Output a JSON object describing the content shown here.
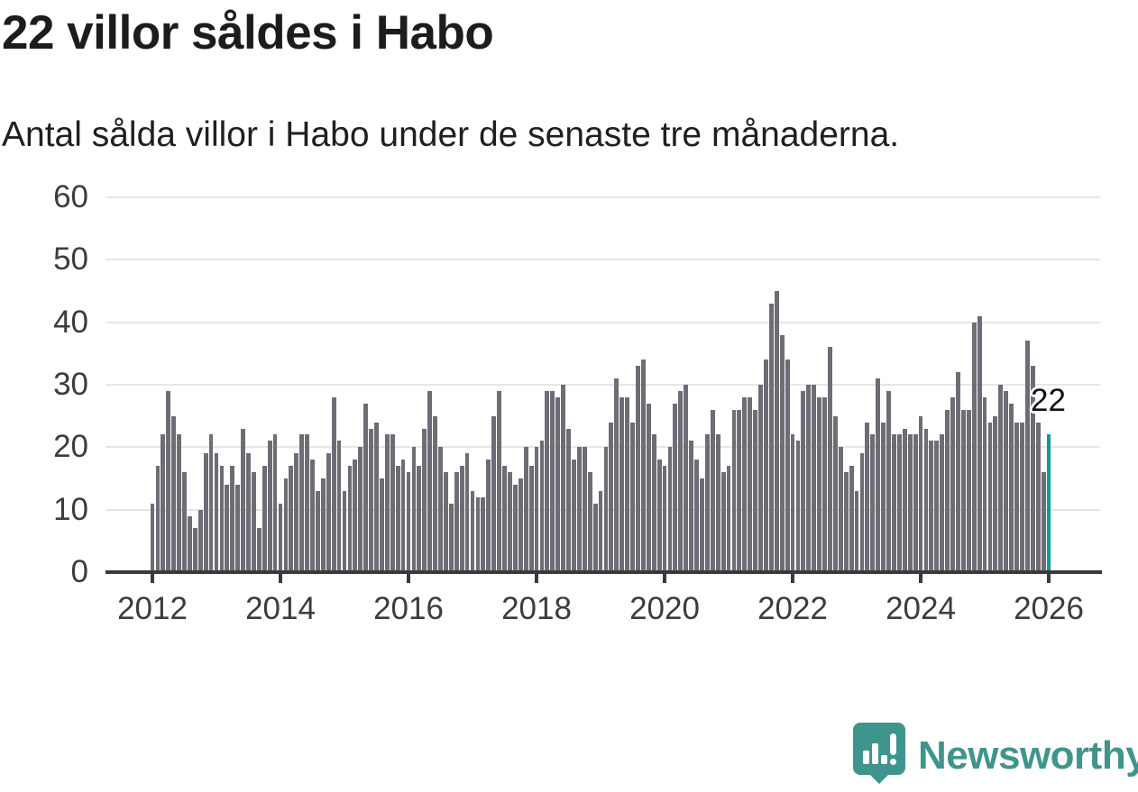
{
  "header": {
    "title": "22 villor såldes i Habo",
    "subtitle": "Antal sålda villor i Habo under de senaste tre månaderna."
  },
  "annotation_label": "22",
  "logo": {
    "name": "Newsworthy",
    "icon": "newsworthy-speech-bubble-chart-icon"
  },
  "colors": {
    "bar": "#6d6d75",
    "highlight": "#089c9c",
    "axis": "#3a3a3a",
    "gridline": "#e6e6e6",
    "logo_teal": "#3f958b",
    "text": "#1c1c1c"
  },
  "chart_data": {
    "type": "bar",
    "title": "22 villor såldes i Habo",
    "subtitle": "Antal sålda villor i Habo under de senaste tre månaderna.",
    "ylabel": "",
    "xlabel": "",
    "x_start": "2012-01",
    "frequency": "monthly-rolling-3-month-sum",
    "ylim": [
      0,
      60
    ],
    "y_ticks": [
      0,
      10,
      20,
      30,
      40,
      50,
      60
    ],
    "x_ticks": [
      "2012",
      "2014",
      "2016",
      "2018",
      "2020",
      "2022",
      "2024",
      "2026"
    ],
    "grid": true,
    "legend": false,
    "values": [
      11,
      17,
      22,
      29,
      25,
      22,
      16,
      9,
      7,
      10,
      19,
      22,
      19,
      17,
      14,
      17,
      14,
      23,
      19,
      16,
      7,
      17,
      21,
      22,
      11,
      15,
      17,
      19,
      22,
      22,
      18,
      13,
      15,
      19,
      28,
      21,
      13,
      17,
      18,
      20,
      27,
      23,
      24,
      15,
      22,
      22,
      17,
      18,
      16,
      20,
      17,
      23,
      29,
      25,
      20,
      16,
      11,
      16,
      17,
      19,
      13,
      12,
      12,
      18,
      25,
      29,
      17,
      16,
      14,
      15,
      20,
      17,
      20,
      21,
      29,
      29,
      28,
      30,
      23,
      18,
      20,
      20,
      16,
      11,
      13,
      20,
      24,
      31,
      28,
      28,
      24,
      33,
      34,
      27,
      22,
      18,
      17,
      20,
      27,
      29,
      30,
      21,
      18,
      15,
      22,
      26,
      22,
      16,
      17,
      26,
      26,
      28,
      28,
      26,
      30,
      34,
      43,
      45,
      38,
      34,
      22,
      21,
      29,
      30,
      30,
      28,
      28,
      36,
      25,
      20,
      16,
      17,
      13,
      19,
      24,
      22,
      31,
      24,
      29,
      22,
      22,
      23,
      22,
      22,
      25,
      23,
      21,
      21,
      22,
      26,
      28,
      32,
      26,
      26,
      40,
      41,
      28,
      24,
      25,
      30,
      29,
      27,
      24,
      24,
      37,
      33,
      24,
      16,
      22
    ],
    "highlight": {
      "index": 168,
      "value": 22,
      "label": "22"
    }
  }
}
